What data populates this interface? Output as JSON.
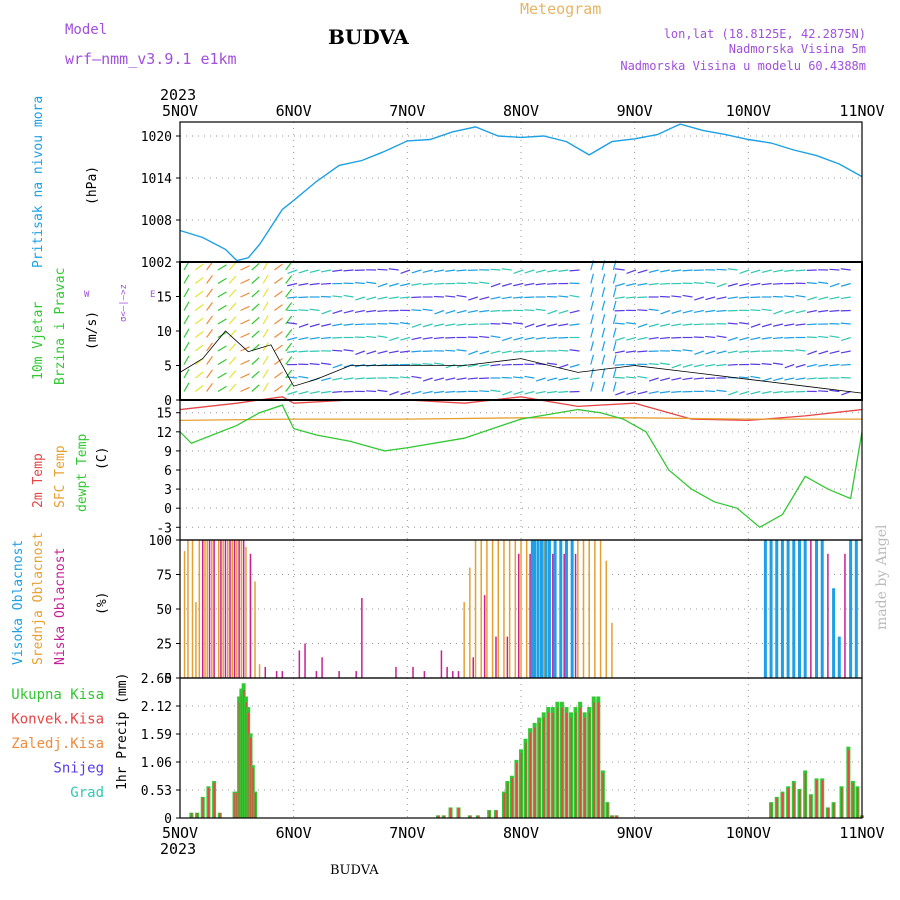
{
  "header": {
    "model_label": "Model",
    "model_name": "wrf—nmm_v3.9.1 e1km",
    "title": "BUDVA",
    "meteogram_label": "Meteogram",
    "lonlat": "lon,lat (18.8125E, 42.2875N)",
    "elevation": "Nadmorska Visina 5m",
    "model_elevation": "Nadmorska Visina u modelu 60.4388m"
  },
  "footer": {
    "station": "BUDVA",
    "credit": "made by Angel"
  },
  "x_axis": {
    "year": "2023",
    "ticks": [
      "5NOV",
      "6NOV",
      "7NOV",
      "8NOV",
      "9NOV",
      "10NOV",
      "11NOV"
    ]
  },
  "panels": {
    "pressure": {
      "label": "Pritisak na nivou mora",
      "unit": "(hPa)"
    },
    "wind": {
      "label1": "10m Vjetar",
      "label2": "Brzina i Pravac",
      "unit": "(m/s)",
      "compass_ns": "σ<—|—>z",
      "compass_w": "W",
      "compass_e": "E"
    },
    "temp": {
      "label1": "2m Temp",
      "label2": "SFC Temp",
      "label3": "dewpt Temp",
      "unit": "(C)"
    },
    "cloud": {
      "label1": "Visoka Oblacnost",
      "label2": "Srednja Oblacnost",
      "label3": "Niska Oblacnost",
      "unit": "(%)"
    },
    "precip": {
      "unit": "1hr Precip (mm)",
      "legend": [
        "Ukupna Kisa",
        "Konvek.Kisa",
        "Zaledj.Kisa",
        "Snijeg",
        "Grad"
      ]
    }
  },
  "colors": {
    "pressure": "#1ea0e6",
    "temp2m": "#e64646",
    "sfc": "#e6a032",
    "dewpt": "#32c832",
    "cloud_high": "#1ea0e6",
    "cloud_mid": "#e6a032",
    "cloud_low": "#c81e96",
    "total": "#32c832",
    "convective": "#e64646",
    "freezing": "#f08c3c",
    "snow": "#5a3ce6",
    "hail": "#32c8b4",
    "model_label": "#a050dc",
    "meteogram": "#e6b464",
    "info": "#a050dc"
  },
  "chart_data": [
    {
      "type": "line",
      "x_unit": "days since 5NOV 00Z",
      "series": [
        {
          "x": [
            0,
            0.2,
            0.4,
            0.5,
            0.6,
            0.7,
            0.8,
            0.9,
            1.0,
            1.2,
            1.4,
            1.6,
            1.8,
            2.0,
            2.2,
            2.4,
            2.6,
            2.8,
            3.0,
            3.2,
            3.4,
            3.6,
            3.8,
            4.0,
            4.2,
            4.4,
            4.6,
            4.8,
            5.0,
            5.2,
            5.4,
            5.6,
            5.8,
            6.0
          ],
          "values": [
            1006.5,
            1005.5,
            1003.8,
            1002.2,
            1002.6,
            1004.5,
            1007,
            1009.5,
            1010.8,
            1013.5,
            1015.8,
            1016.5,
            1017.8,
            1019.3,
            1019.5,
            1020.6,
            1021.3,
            1020.0,
            1019.8,
            1020.0,
            1019.2,
            1017.3,
            1019.2,
            1019.6,
            1020.2,
            1021.7,
            1020.8,
            1020.2,
            1019.5,
            1019.0,
            1018.0,
            1017.2,
            1016.0,
            1014.2
          ]
        }
      ],
      "ylim": [
        1002,
        1022
      ],
      "yticks": [
        1002,
        1008,
        1014,
        1020
      ]
    },
    {
      "type": "line",
      "x_unit": "days since 5NOV 00Z",
      "series": [
        {
          "x": [
            0,
            0.2,
            0.4,
            0.6,
            0.8,
            1.0,
            1.2,
            1.5,
            2.0,
            2.5,
            3.0,
            3.5,
            4.0,
            4.5,
            5.0,
            5.5,
            6.0
          ],
          "values": [
            4,
            6,
            10,
            7,
            8,
            2,
            3,
            5,
            5,
            5,
            6,
            4,
            5,
            4,
            3,
            2,
            1
          ]
        }
      ],
      "ylim": [
        0,
        20
      ],
      "yticks": [
        0,
        5,
        10,
        15
      ]
    },
    {
      "type": "line",
      "x_unit": "days since 5NOV 00Z",
      "series": [
        {
          "name": "2m Temp",
          "x": [
            0,
            0.5,
            0.9,
            1.0,
            1.5,
            2.0,
            2.5,
            3.0,
            3.5,
            4.0,
            4.5,
            5.0,
            5.5,
            6.0
          ],
          "values": [
            15.5,
            16.5,
            17.5,
            16.5,
            17,
            17,
            16.5,
            17.5,
            16,
            16.5,
            14,
            13.8,
            14.5,
            15.5
          ]
        },
        {
          "name": "SFC Temp",
          "x": [
            0,
            1,
            2,
            3,
            4,
            5,
            6
          ],
          "values": [
            13.8,
            14,
            14,
            14.2,
            14.2,
            14,
            14
          ]
        },
        {
          "name": "dewpt Temp",
          "x": [
            0,
            0.1,
            0.5,
            0.7,
            0.9,
            1.0,
            1.2,
            1.5,
            1.8,
            2.0,
            2.5,
            3.0,
            3.5,
            3.7,
            3.9,
            4.1,
            4.3,
            4.5,
            4.7,
            4.9,
            5.1,
            5.3,
            5.5,
            5.7,
            5.9,
            6.0
          ],
          "values": [
            12,
            10.2,
            13,
            15,
            16.2,
            12.5,
            11.5,
            10.5,
            9,
            9.5,
            11,
            14,
            15.5,
            15,
            14,
            12,
            6,
            3,
            1,
            0,
            -3,
            -1,
            5,
            3,
            1.5,
            12
          ]
        }
      ],
      "ylim": [
        -5,
        17
      ],
      "yticks": [
        -3,
        0,
        3,
        6,
        9,
        12,
        15
      ]
    },
    {
      "type": "bar",
      "x_unit": "days since 5NOV 00Z",
      "series": [
        {
          "name": "Srednja Oblacnost",
          "x": [
            0.04,
            0.07,
            0.11,
            0.14,
            0.17,
            0.2,
            0.22,
            0.24,
            0.28,
            0.34,
            0.38,
            0.42,
            0.46,
            0.5,
            0.54,
            0.58,
            0.62,
            0.66,
            0.7,
            2.5,
            2.55,
            2.6,
            2.65,
            2.7,
            2.75,
            2.8,
            2.85,
            2.9,
            2.95,
            3.0,
            3.05,
            3.1,
            3.15,
            3.2,
            3.25,
            3.3,
            3.35,
            3.4,
            3.45,
            3.5,
            3.55,
            3.6,
            3.65,
            3.7,
            3.75,
            3.8
          ],
          "values": [
            92,
            100,
            100,
            55,
            100,
            100,
            100,
            100,
            100,
            100,
            100,
            100,
            100,
            100,
            100,
            95,
            85,
            70,
            10,
            55,
            80,
            100,
            100,
            100,
            100,
            100,
            100,
            100,
            100,
            100,
            100,
            100,
            100,
            100,
            100,
            100,
            100,
            100,
            100,
            100,
            100,
            100,
            100,
            100,
            85,
            40
          ]
        },
        {
          "name": "Niska Oblacnost",
          "x": [
            0.2,
            0.26,
            0.3,
            0.36,
            0.4,
            0.44,
            0.48,
            0.52,
            0.56,
            0.62,
            0.75,
            0.85,
            0.9,
            1.05,
            1.1,
            1.2,
            1.25,
            1.4,
            1.55,
            1.6,
            1.9,
            2.05,
            2.15,
            2.3,
            2.35,
            2.4,
            2.45,
            2.58,
            2.68,
            2.78,
            2.88,
            2.98,
            3.08,
            3.18,
            3.28,
            3.38,
            3.48,
            5.4,
            5.45,
            5.5,
            5.55,
            5.6,
            5.7,
            5.85
          ],
          "values": [
            100,
            100,
            100,
            100,
            100,
            100,
            100,
            100,
            100,
            90,
            8,
            5,
            5,
            20,
            25,
            5,
            15,
            5,
            5,
            58,
            8,
            8,
            5,
            20,
            8,
            5,
            5,
            15,
            60,
            30,
            30,
            90,
            90,
            90,
            90,
            90,
            90,
            100,
            100,
            100,
            100,
            100,
            90,
            90
          ]
        },
        {
          "name": "Visoka Oblacnost",
          "x": [
            3.1,
            3.12,
            3.15,
            3.18,
            3.22,
            3.25,
            3.3,
            3.35,
            3.4,
            3.45,
            5.15,
            5.2,
            5.25,
            5.3,
            5.35,
            5.4,
            5.45,
            5.5,
            5.6,
            5.65,
            5.75,
            5.8,
            5.9,
            5.95
          ],
          "values": [
            100,
            100,
            100,
            100,
            100,
            100,
            100,
            100,
            100,
            100,
            100,
            100,
            100,
            100,
            100,
            100,
            100,
            100,
            100,
            100,
            65,
            30,
            100,
            100
          ]
        }
      ],
      "ylim": [
        0,
        100
      ],
      "yticks": [
        0,
        25,
        50,
        75,
        100
      ]
    },
    {
      "type": "bar",
      "x_unit": "days since 5NOV 00Z",
      "series": [
        {
          "name": "Ukupna Kisa",
          "x": [
            0.1,
            0.15,
            0.2,
            0.25,
            0.3,
            0.35,
            0.48,
            0.5,
            0.52,
            0.54,
            0.56,
            0.58,
            0.6,
            0.62,
            0.64,
            0.66,
            2.27,
            2.32,
            2.38,
            2.45,
            2.55,
            2.62,
            2.72,
            2.78,
            2.85,
            2.88,
            2.92,
            2.96,
            3.0,
            3.04,
            3.08,
            3.12,
            3.16,
            3.2,
            3.24,
            3.28,
            3.32,
            3.36,
            3.4,
            3.44,
            3.48,
            3.52,
            3.56,
            3.6,
            3.64,
            3.68,
            3.72,
            3.76,
            3.8,
            3.84,
            5.2,
            5.25,
            5.3,
            5.35,
            5.4,
            5.45,
            5.5,
            5.55,
            5.6,
            5.65,
            5.7,
            5.75,
            5.82,
            5.88,
            5.92,
            5.96,
            6.0
          ],
          "values": [
            0.1,
            0.1,
            0.4,
            0.6,
            0.7,
            0.1,
            0.5,
            0.5,
            2.3,
            2.45,
            2.55,
            2.3,
            2.1,
            1.6,
            1.0,
            0.5,
            0.05,
            0.05,
            0.2,
            0.2,
            0.05,
            0.05,
            0.15,
            0.15,
            0.5,
            0.7,
            0.8,
            1.1,
            1.3,
            1.5,
            1.7,
            1.8,
            1.9,
            2.0,
            2.1,
            2.1,
            2.2,
            2.2,
            2.1,
            2.0,
            2.1,
            2.2,
            2.0,
            2.1,
            2.3,
            2.3,
            0.9,
            0.3,
            0.05,
            0.05,
            0.3,
            0.4,
            0.5,
            0.6,
            0.7,
            0.55,
            0.9,
            0.45,
            0.75,
            0.75,
            0.2,
            0.3,
            0.6,
            1.35,
            0.7,
            0.6,
            0.05
          ]
        }
      ],
      "ylim": [
        0,
        2.65
      ],
      "yticks": [
        0,
        0.53,
        1.06,
        1.59,
        2.12,
        2.65
      ]
    }
  ]
}
